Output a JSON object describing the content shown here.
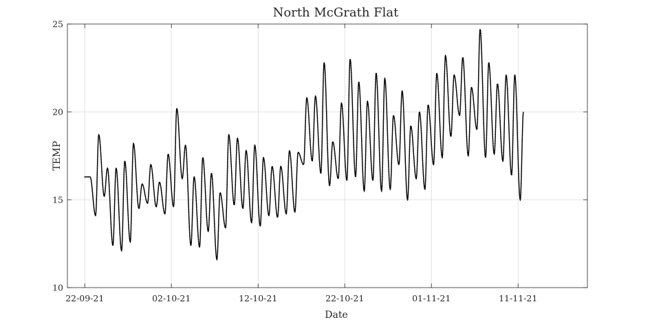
{
  "chart_data": {
    "type": "line",
    "title": "North McGrath Flat",
    "xlabel": "Date",
    "ylabel": "TEMP",
    "ylim": [
      10,
      25
    ],
    "xlim": [
      "2021-09-20",
      "2021-11-19"
    ],
    "yticks": [
      10,
      15,
      20,
      25
    ],
    "xticks": [
      {
        "date": "2021-09-22",
        "label": "22-09-21"
      },
      {
        "date": "2021-10-02",
        "label": "02-10-21"
      },
      {
        "date": "2021-10-12",
        "label": "12-10-21"
      },
      {
        "date": "2021-10-22",
        "label": "22-10-21"
      },
      {
        "date": "2021-11-01",
        "label": "01-11-21"
      },
      {
        "date": "2021-11-11",
        "label": "11-11-21"
      }
    ],
    "grid": true,
    "line_color": "#000000",
    "series": [
      {
        "x": [
          "2021-09-22",
          "2021-09-23",
          "2021-09-24",
          "2021-09-25",
          "2021-09-26",
          "2021-09-27",
          "2021-09-28",
          "2021-09-29",
          "2021-09-30",
          "2021-10-01",
          "2021-10-02",
          "2021-10-03",
          "2021-10-04",
          "2021-10-05",
          "2021-10-06",
          "2021-10-07",
          "2021-10-08",
          "2021-10-09",
          "2021-10-10",
          "2021-10-11",
          "2021-10-12",
          "2021-10-13",
          "2021-10-14",
          "2021-10-15",
          "2021-10-16",
          "2021-10-17",
          "2021-10-18",
          "2021-10-19",
          "2021-10-20",
          "2021-10-21",
          "2021-10-22",
          "2021-10-23",
          "2021-10-24",
          "2021-10-25",
          "2021-10-26",
          "2021-10-27",
          "2021-10-28",
          "2021-10-29",
          "2021-10-30",
          "2021-10-31",
          "2021-11-01",
          "2021-11-02",
          "2021-11-03",
          "2021-11-04",
          "2021-11-05",
          "2021-11-06",
          "2021-11-07",
          "2021-11-08",
          "2021-11-09",
          "2021-11-10",
          "2021-11-11"
        ],
        "min": [
          16.3,
          14.1,
          15.2,
          12.4,
          12.1,
          12.6,
          14.5,
          14.8,
          14.6,
          14.2,
          14.6,
          16.2,
          12.4,
          12.3,
          13.2,
          11.6,
          13.4,
          14.7,
          14.5,
          13.7,
          13.5,
          14.1,
          14.0,
          14.2,
          14.3,
          17.0,
          17.2,
          16.5,
          15.8,
          16.2,
          16.1,
          16.3,
          15.5,
          16.1,
          15.5,
          15.6,
          17.0,
          15.0,
          16.2,
          15.6,
          17.0,
          17.4,
          18.6,
          19.8,
          17.5,
          19.0,
          17.4,
          17.6,
          17.2,
          16.4,
          15.0
        ],
        "max": [
          16.3,
          18.7,
          16.8,
          16.8,
          17.2,
          18.2,
          15.9,
          17.0,
          16.0,
          17.6,
          20.2,
          18.1,
          16.3,
          17.4,
          16.5,
          15.4,
          18.7,
          18.5,
          17.8,
          18.1,
          17.4,
          16.9,
          16.9,
          17.8,
          17.7,
          20.8,
          20.9,
          22.8,
          18.3,
          20.5,
          23.0,
          21.7,
          20.6,
          22.2,
          21.9,
          19.8,
          21.2,
          19.2,
          20.0,
          20.4,
          22.2,
          23.2,
          22.1,
          23.1,
          21.4,
          24.7,
          22.8,
          21.6,
          22.1,
          22.1,
          20.0
        ]
      }
    ]
  }
}
